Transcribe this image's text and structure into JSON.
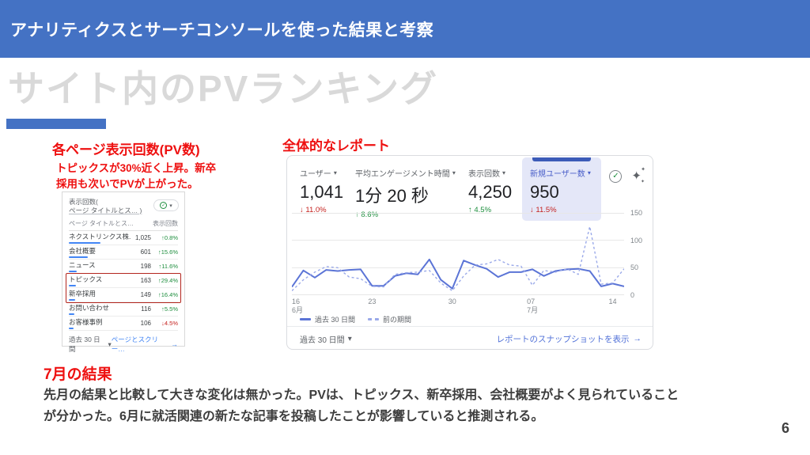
{
  "slide": {
    "header_title": "アナリティクスとサーチコンソールを使った結果と考察",
    "main_title": "サイト内のPVランキング",
    "page_number": "6",
    "colors": {
      "header_blue": "#4472C4",
      "heading_red": "#EE1010",
      "title_gray": "#D9D9D9",
      "line_current": "#5B74D6",
      "line_previous": "#9AA9E9",
      "delta_up": "#1E8E3E",
      "delta_down": "#C5221F",
      "link_blue": "#4285F4",
      "report_link": "#5272D8",
      "selected_metric_bg": "#E4E7F8",
      "selected_metric_bar": "#3C5BB8"
    }
  },
  "icons": {
    "caret_down": "▾",
    "arrow_right": "→",
    "arrow_up": "↑",
    "arrow_down": "↓",
    "check": "✓",
    "sparkle": "✦"
  },
  "pv_section": {
    "heading": "各ページ表示回数(PV数)",
    "note_line1": "トピックスが30%近く上昇。新卒",
    "note_line2": "採用も次いでPVが上がった。",
    "table": {
      "title_line1": "表示回数(",
      "title_line2": "ページ タイトルとス… )",
      "col_page": "ページ タイトルとス…",
      "col_views": "表示回数",
      "rows": [
        {
          "label": "ネクストリンクス株..",
          "value": "1,025",
          "delta": "0.8%",
          "dir": "up",
          "bar": 40,
          "boxed": false
        },
        {
          "label": "会社概要",
          "value": "601",
          "delta": "15.6%",
          "dir": "up",
          "bar": 24,
          "boxed": false
        },
        {
          "label": "ニュース",
          "value": "198",
          "delta": "11.6%",
          "dir": "up",
          "bar": 10,
          "boxed": false
        },
        {
          "label": "トピックス",
          "value": "163",
          "delta": "29.4%",
          "dir": "up",
          "bar": 9,
          "boxed": true
        },
        {
          "label": "新卒採用",
          "value": "149",
          "delta": "16.4%",
          "dir": "up",
          "bar": 8,
          "boxed": true
        },
        {
          "label": "お問い合わせ",
          "value": "116",
          "delta": "5.5%",
          "dir": "up",
          "bar": 7,
          "boxed": false
        },
        {
          "label": "お客様事例",
          "value": "106",
          "delta": "4.5%",
          "dir": "down",
          "bar": 6,
          "boxed": false
        }
      ],
      "footer_range": "過去 30 日間",
      "footer_link": "ページとスクリー…"
    }
  },
  "report_section": {
    "heading": "全体的なレポート",
    "metrics": [
      {
        "label": "ユーザー",
        "value": "1,041",
        "delta": "11.0%",
        "dir": "down",
        "selected": false
      },
      {
        "label": "平均エンゲージメント時間",
        "value": "1分 20 秒",
        "delta": "8.6%",
        "dir": "up",
        "selected": false
      },
      {
        "label": "表示回数",
        "value": "4,250",
        "delta": "4.5%",
        "dir": "up",
        "selected": false
      },
      {
        "label": "新規ユーザー数",
        "value": "950",
        "delta": "11.5%",
        "dir": "down",
        "selected": true
      }
    ],
    "footer_range": "過去 30 日間",
    "footer_link": "レポートのスナップショットを表示"
  },
  "chart_data": {
    "type": "line",
    "title": "",
    "xlabel": "",
    "ylabel": "",
    "ylim": [
      0,
      150
    ],
    "y_ticks": [
      0,
      50,
      100,
      150
    ],
    "grid": "horizontal",
    "legend_position": "bottom-left",
    "x_ticks": [
      {
        "label": "16",
        "sub": "6月",
        "index": 0
      },
      {
        "label": "23",
        "sub": "",
        "index": 7
      },
      {
        "label": "30",
        "sub": "",
        "index": 14
      },
      {
        "label": "07",
        "sub": "7月",
        "index": 21
      },
      {
        "label": "14",
        "sub": "",
        "index": 28
      }
    ],
    "series": [
      {
        "name": "過去 30 日間",
        "style": "solid",
        "color": "#5B74D6",
        "values": [
          15,
          45,
          32,
          46,
          44,
          46,
          47,
          17,
          17,
          35,
          40,
          38,
          65,
          28,
          12,
          63,
          55,
          48,
          33,
          42,
          42,
          47,
          35,
          44,
          47,
          48,
          44,
          16,
          21,
          16
        ]
      },
      {
        "name": "前の期間",
        "style": "dashed",
        "color": "#9AA9E9",
        "values": [
          8,
          28,
          42,
          52,
          50,
          33,
          30,
          16,
          15,
          38,
          41,
          42,
          45,
          22,
          8,
          35,
          55,
          57,
          65,
          55,
          53,
          18,
          45,
          42,
          48,
          38,
          125,
          20,
          22,
          48
        ]
      }
    ]
  },
  "summary": {
    "heading": "7月の結果",
    "body_line1": "先月の結果と比較して大きな変化は無かった。PVは、トピックス、新卒採用、会社概要がよく見られていること",
    "body_line2": "が分かった。6月に就活関連の新たな記事を投稿したことが影響していると推測される。"
  }
}
